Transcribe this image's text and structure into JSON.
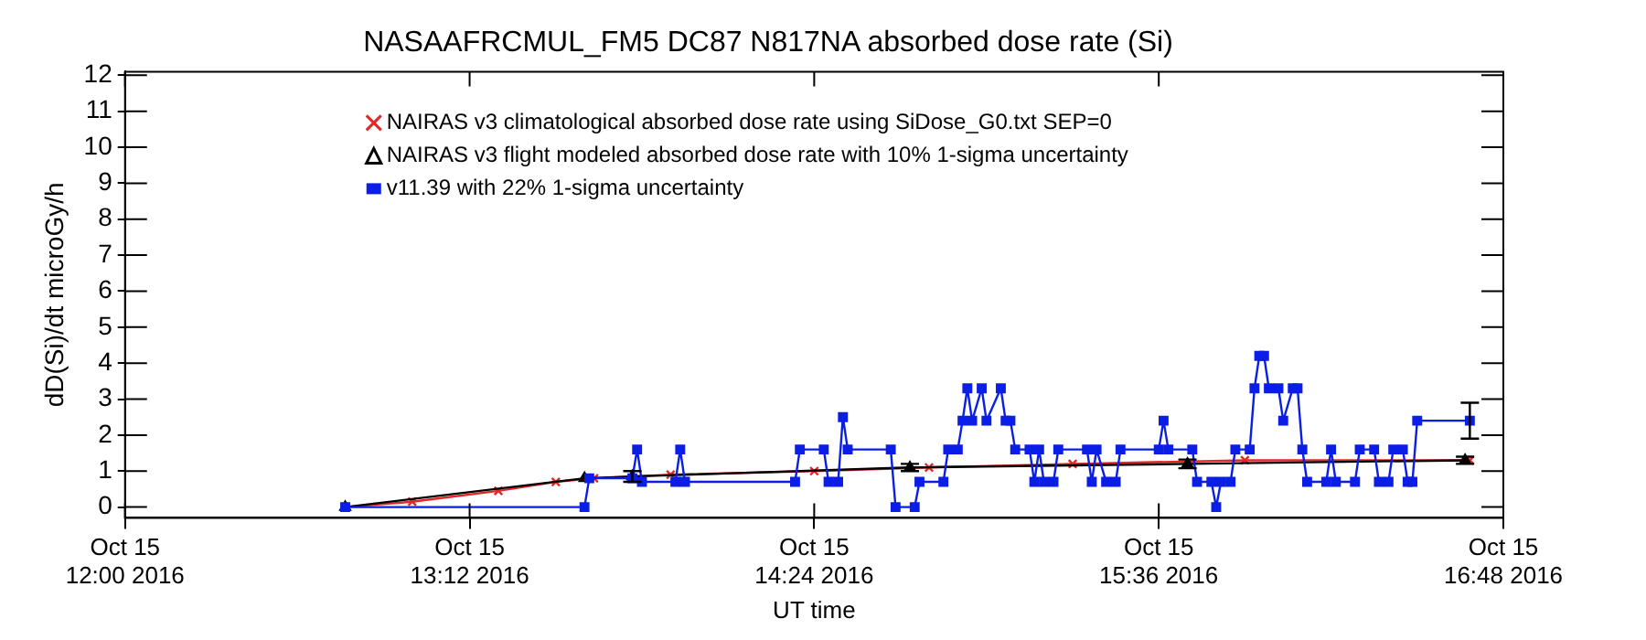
{
  "chart_data": {
    "type": "line",
    "title": "NASAAFRCMUL_FM5 DC87 N817NA absorbed dose rate (Si)",
    "xlabel": "UT time",
    "ylabel": "dD(Si)/dt microGy/h",
    "xlim": [
      "2016-10-15T12:00",
      "2016-10-15T16:48"
    ],
    "xticks": [
      {
        "value": "2016-10-15T12:00",
        "label": "Oct 15\n12:00 2016"
      },
      {
        "value": "2016-10-15T13:12",
        "label": "Oct 15\n13:12 2016"
      },
      {
        "value": "2016-10-15T14:24",
        "label": "Oct 15\n14:24 2016"
      },
      {
        "value": "2016-10-15T15:36",
        "label": "Oct 15\n15:36 2016"
      },
      {
        "value": "2016-10-15T16:48",
        "label": "Oct 15\n16:48 2016"
      }
    ],
    "ylim": [
      -0.3,
      12.1
    ],
    "yticks": [
      0,
      1,
      2,
      3,
      4,
      5,
      6,
      7,
      8,
      9,
      10,
      11,
      12
    ],
    "grid": false,
    "legend": "top",
    "line_style": "solid",
    "series": [
      {
        "name": "NAIRAS v3 climatological absorbed dose rate using SiDose_G0.txt SEP=0",
        "color": "#e02828",
        "marker": "cross",
        "x": [
          "2016-10-15T12:46",
          "2016-10-15T13:00",
          "2016-10-15T13:18",
          "2016-10-15T13:30",
          "2016-10-15T13:38",
          "2016-10-15T13:54",
          "2016-10-15T14:24",
          "2016-10-15T14:48",
          "2016-10-15T15:18",
          "2016-10-15T15:54",
          "2016-10-15T16:41"
        ],
        "values": [
          0,
          0.15,
          0.45,
          0.7,
          0.8,
          0.9,
          1.0,
          1.1,
          1.2,
          1.3,
          1.3
        ]
      },
      {
        "name": "NAIRAS v3 flight modeled absorbed dose rate with 10% 1-sigma uncertainty",
        "color": "#000000",
        "marker": "triangle",
        "x": [
          "2016-10-15T12:46",
          "2016-10-15T13:36",
          "2016-10-15T13:46",
          "2016-10-15T14:44",
          "2016-10-15T15:42",
          "2016-10-15T16:40"
        ],
        "values": [
          0,
          0.8,
          0.85,
          1.1,
          1.2,
          1.3
        ],
        "errors": [
          null,
          null,
          0.15,
          0.1,
          0.12,
          0.1
        ]
      },
      {
        "name": "v11.39 with 22% 1-sigma uncertainty",
        "color": "#0a1ee6",
        "marker": "square",
        "x": [
          "2016-10-15T12:46",
          "2016-10-15T13:36",
          "2016-10-15T13:37",
          "2016-10-15T13:46",
          "2016-10-15T13:47",
          "2016-10-15T13:48",
          "2016-10-15T13:55",
          "2016-10-15T13:56",
          "2016-10-15T13:57",
          "2016-10-15T14:20",
          "2016-10-15T14:21",
          "2016-10-15T14:26",
          "2016-10-15T14:27",
          "2016-10-15T14:29",
          "2016-10-15T14:30",
          "2016-10-15T14:31",
          "2016-10-15T14:40",
          "2016-10-15T14:41",
          "2016-10-15T14:45",
          "2016-10-15T14:46",
          "2016-10-15T14:51",
          "2016-10-15T14:52",
          "2016-10-15T14:54",
          "2016-10-15T14:55",
          "2016-10-15T14:56",
          "2016-10-15T14:57",
          "2016-10-15T14:59",
          "2016-10-15T15:00",
          "2016-10-15T15:03",
          "2016-10-15T15:04",
          "2016-10-15T15:05",
          "2016-10-15T15:06",
          "2016-10-15T15:09",
          "2016-10-15T15:10",
          "2016-10-15T15:11",
          "2016-10-15T15:12",
          "2016-10-15T15:14",
          "2016-10-15T15:15",
          "2016-10-15T15:21",
          "2016-10-15T15:22",
          "2016-10-15T15:23",
          "2016-10-15T15:25",
          "2016-10-15T15:27",
          "2016-10-15T15:28",
          "2016-10-15T15:36",
          "2016-10-15T15:37",
          "2016-10-15T15:38",
          "2016-10-15T15:43",
          "2016-10-15T15:44",
          "2016-10-15T15:47",
          "2016-10-15T15:48",
          "2016-10-15T15:49",
          "2016-10-15T15:51",
          "2016-10-15T15:52",
          "2016-10-15T15:55",
          "2016-10-15T15:56",
          "2016-10-15T15:57",
          "2016-10-15T15:58",
          "2016-10-15T15:59",
          "2016-10-15T16:01",
          "2016-10-15T16:02",
          "2016-10-15T16:04",
          "2016-10-15T16:05",
          "2016-10-15T16:06",
          "2016-10-15T16:07",
          "2016-10-15T16:11",
          "2016-10-15T16:12",
          "2016-10-15T16:13",
          "2016-10-15T16:17",
          "2016-10-15T16:18",
          "2016-10-15T16:21",
          "2016-10-15T16:22",
          "2016-10-15T16:24",
          "2016-10-15T16:25",
          "2016-10-15T16:27",
          "2016-10-15T16:28",
          "2016-10-15T16:29",
          "2016-10-15T16:30",
          "2016-10-15T16:41"
        ],
        "values": [
          0,
          0,
          0.8,
          0.8,
          1.6,
          0.7,
          0.7,
          1.6,
          0.7,
          0.7,
          1.6,
          1.6,
          0.7,
          0.7,
          2.5,
          1.6,
          1.6,
          0,
          0,
          0.7,
          0.7,
          1.6,
          1.6,
          2.4,
          3.3,
          2.4,
          3.3,
          2.4,
          3.3,
          2.4,
          2.4,
          1.6,
          1.6,
          0.7,
          1.6,
          0.7,
          0.7,
          1.6,
          1.6,
          0.7,
          1.6,
          0.7,
          0.7,
          1.6,
          1.6,
          2.4,
          1.6,
          1.6,
          0.7,
          0.7,
          0,
          0.7,
          0.7,
          1.6,
          1.6,
          3.3,
          4.2,
          4.2,
          3.3,
          3.3,
          2.4,
          3.3,
          3.3,
          1.6,
          0.7,
          0.7,
          1.6,
          0.7,
          0.7,
          1.6,
          1.6,
          0.7,
          0.7,
          1.6,
          1.6,
          0.7,
          0.7,
          2.4,
          2.4
        ],
        "errors": [
          null,
          null,
          null,
          null,
          null,
          null,
          null,
          null,
          null,
          null,
          null,
          null,
          null,
          null,
          null,
          null,
          null,
          null,
          null,
          null,
          null,
          null,
          null,
          null,
          null,
          null,
          null,
          null,
          null,
          null,
          null,
          null,
          null,
          null,
          null,
          null,
          null,
          null,
          null,
          null,
          null,
          null,
          null,
          null,
          null,
          null,
          null,
          null,
          null,
          null,
          null,
          null,
          null,
          null,
          null,
          null,
          null,
          null,
          null,
          null,
          null,
          null,
          null,
          null,
          null,
          null,
          null,
          null,
          null,
          null,
          null,
          null,
          null,
          null,
          null,
          null,
          null,
          null,
          0.5
        ]
      }
    ]
  }
}
